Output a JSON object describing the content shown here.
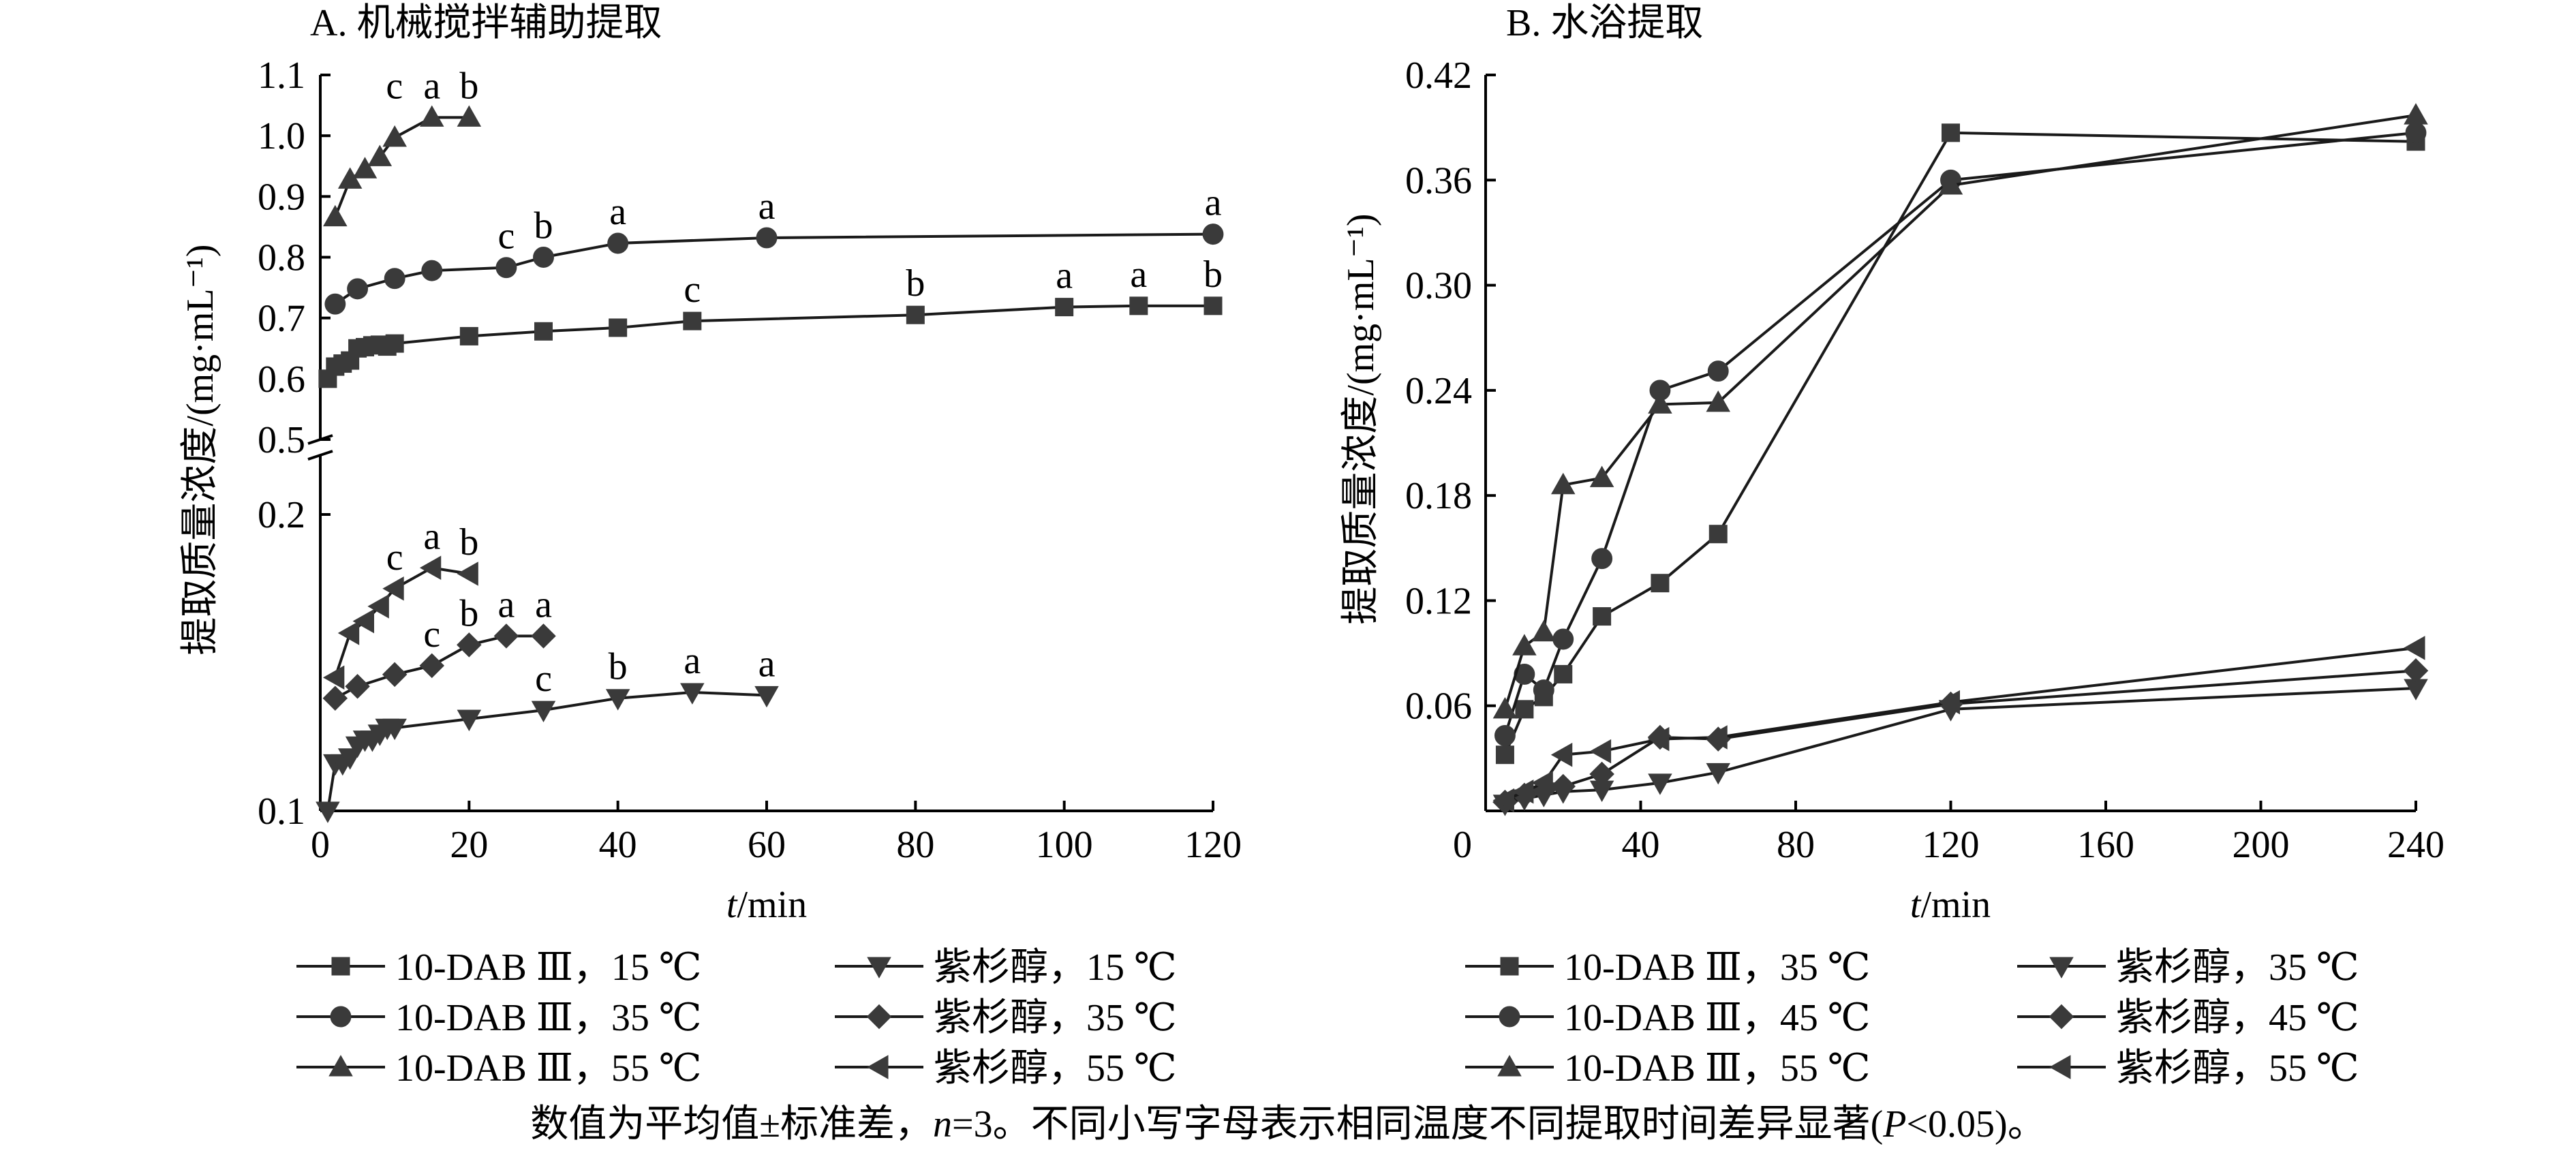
{
  "chart_data": [
    {
      "type": "line",
      "title": "A. 机械搅拌辅助提取",
      "xlabel_italic": "t",
      "xlabel_rest": "/min",
      "ylabel": "提取质量浓度/(mg·mL⁻¹)",
      "xlim": [
        0,
        120
      ],
      "xticks": [
        "0",
        "20",
        "40",
        "60",
        "80",
        "100",
        "120"
      ],
      "ylim_upper": [
        0.5,
        1.1
      ],
      "yticks_upper": [
        "0.5",
        "0.6",
        "0.7",
        "0.8",
        "0.9",
        "1.0",
        "1.1"
      ],
      "ylim_lower": [
        0.1,
        0.2
      ],
      "yticks_lower": [
        "0.1",
        "0.2"
      ],
      "grid": false,
      "series": [
        {
          "name": "10-DAB Ⅲ，15 ℃",
          "marker": "square",
          "panel": "upper",
          "x": [
            1,
            2,
            3,
            4,
            5,
            6,
            7,
            8,
            9,
            10,
            20,
            30,
            40,
            50,
            80,
            100,
            110,
            120
          ],
          "y": [
            0.6,
            0.62,
            0.625,
            0.63,
            0.65,
            0.652,
            0.655,
            0.656,
            0.653,
            0.658,
            0.67,
            0.678,
            0.684,
            0.695,
            0.705,
            0.718,
            0.72,
            0.72
          ]
        },
        {
          "name": "10-DAB Ⅲ，35 ℃",
          "marker": "circle",
          "panel": "upper",
          "x": [
            2,
            5,
            10,
            15,
            25,
            30,
            40,
            60,
            120
          ],
          "y": [
            0.723,
            0.748,
            0.765,
            0.778,
            0.783,
            0.8,
            0.823,
            0.832,
            0.838
          ]
        },
        {
          "name": "10-DAB Ⅲ，55 ℃",
          "marker": "triangle-up",
          "panel": "upper",
          "x": [
            2,
            4,
            6,
            8,
            10,
            15,
            20
          ],
          "y": [
            0.866,
            0.928,
            0.945,
            0.965,
            0.997,
            1.03,
            1.03
          ]
        },
        {
          "name": "紫杉醇，15 ℃",
          "marker": "triangle-down",
          "panel": "lower",
          "x": [
            1,
            2,
            3,
            4,
            5,
            6,
            7,
            8,
            9,
            10,
            20,
            30,
            40,
            50,
            60
          ],
          "y": [
            0.1,
            0.116,
            0.116,
            0.118,
            0.122,
            0.124,
            0.124,
            0.126,
            0.128,
            0.128,
            0.131,
            0.134,
            0.138,
            0.14,
            0.139
          ]
        },
        {
          "name": "紫杉醇，35 ℃",
          "marker": "diamond",
          "panel": "lower",
          "x": [
            2,
            5,
            10,
            15,
            20,
            25,
            30
          ],
          "y": [
            0.138,
            0.142,
            0.146,
            0.149,
            0.156,
            0.159,
            0.159
          ]
        },
        {
          "name": "紫杉醇，55 ℃",
          "marker": "triangle-left",
          "panel": "lower",
          "x": [
            2,
            4,
            6,
            8,
            10,
            15,
            20
          ],
          "y": [
            0.145,
            0.16,
            0.164,
            0.169,
            0.175,
            0.182,
            0.18
          ]
        }
      ],
      "annotations": [
        {
          "text": "c",
          "x": 15,
          "y": 1.03,
          "panel": "upper"
        },
        {
          "text": "a",
          "x": 15,
          "y": 1.03,
          "panel": "upper"
        },
        {
          "text": "b",
          "x": 20,
          "y": 1.03,
          "panel": "upper"
        },
        {
          "text": "c",
          "x": 25,
          "y": 0.783,
          "panel": "upper"
        },
        {
          "text": "b",
          "x": 30,
          "y": 0.8,
          "panel": "upper"
        },
        {
          "text": "a",
          "x": 40,
          "y": 0.823,
          "panel": "upper"
        },
        {
          "text": "a",
          "x": 60,
          "y": 0.832,
          "panel": "upper"
        },
        {
          "text": "a",
          "x": 120,
          "y": 0.838,
          "panel": "upper"
        },
        {
          "text": "c",
          "x": 50,
          "y": 0.695,
          "panel": "upper"
        },
        {
          "text": "b",
          "x": 80,
          "y": 0.705,
          "panel": "upper"
        },
        {
          "text": "a",
          "x": 100,
          "y": 0.718,
          "panel": "upper"
        },
        {
          "text": "a",
          "x": 110,
          "y": 0.72,
          "panel": "upper"
        },
        {
          "text": "b",
          "x": 120,
          "y": 0.72,
          "panel": "upper"
        },
        {
          "text": "c",
          "x": 10,
          "y": 0.175,
          "panel": "lower"
        },
        {
          "text": "a",
          "x": 15,
          "y": 0.182,
          "panel": "lower"
        },
        {
          "text": "b",
          "x": 20,
          "y": 0.18,
          "panel": "lower"
        },
        {
          "text": "c",
          "x": 15,
          "y": 0.149,
          "panel": "lower"
        },
        {
          "text": "b",
          "x": 20,
          "y": 0.156,
          "panel": "lower"
        },
        {
          "text": "a",
          "x": 25,
          "y": 0.159,
          "panel": "lower"
        },
        {
          "text": "a",
          "x": 30,
          "y": 0.159,
          "panel": "lower"
        },
        {
          "text": "c",
          "x": 30,
          "y": 0.134,
          "panel": "lower"
        },
        {
          "text": "b",
          "x": 40,
          "y": 0.138,
          "panel": "lower"
        },
        {
          "text": "a",
          "x": 50,
          "y": 0.14,
          "panel": "lower"
        },
        {
          "text": "a",
          "x": 60,
          "y": 0.139,
          "panel": "lower"
        }
      ]
    },
    {
      "type": "line",
      "title": "B. 水浴提取",
      "xlabel_italic": "t",
      "xlabel_rest": "/min",
      "ylabel": "提取质量浓度/(mg·mL⁻¹)",
      "xlim": [
        0,
        240
      ],
      "xticks": [
        "0",
        "40",
        "80",
        "120",
        "160",
        "200",
        "240"
      ],
      "ylim": [
        0,
        0.42
      ],
      "yticks": [
        "0.06",
        "0.12",
        "0.18",
        "0.24",
        "0.30",
        "0.36",
        "0.42"
      ],
      "yzero_label": "0",
      "grid": false,
      "series": [
        {
          "name": "10-DAB Ⅲ，35 ℃",
          "marker": "square",
          "x": [
            5,
            10,
            15,
            20,
            30,
            45,
            60,
            120,
            240
          ],
          "y": [
            0.032,
            0.058,
            0.065,
            0.078,
            0.111,
            0.13,
            0.158,
            0.387,
            0.382
          ]
        },
        {
          "name": "10-DAB Ⅲ，45 ℃",
          "marker": "circle",
          "x": [
            5,
            10,
            15,
            20,
            30,
            45,
            60,
            120,
            240
          ],
          "y": [
            0.043,
            0.078,
            0.069,
            0.098,
            0.144,
            0.24,
            0.251,
            0.36,
            0.387
          ]
        },
        {
          "name": "10-DAB Ⅲ，55 ℃",
          "marker": "triangle-up",
          "x": [
            5,
            10,
            15,
            20,
            30,
            45,
            60,
            120,
            240
          ],
          "y": [
            0.058,
            0.094,
            0.102,
            0.186,
            0.19,
            0.232,
            0.233,
            0.357,
            0.397
          ]
        },
        {
          "name": "紫杉醇，35 ℃",
          "marker": "triangle-down",
          "x": [
            5,
            10,
            15,
            20,
            30,
            45,
            60,
            120,
            240
          ],
          "y": [
            0.004,
            0.007,
            0.009,
            0.011,
            0.012,
            0.016,
            0.022,
            0.058,
            0.07
          ]
        },
        {
          "name": "紫杉醇，45 ℃",
          "marker": "diamond",
          "x": [
            5,
            10,
            15,
            20,
            30,
            45,
            60,
            120,
            240
          ],
          "y": [
            0.005,
            0.009,
            0.012,
            0.014,
            0.021,
            0.042,
            0.041,
            0.061,
            0.08
          ]
        },
        {
          "name": "紫杉醇，55 ℃",
          "marker": "triangle-left",
          "x": [
            5,
            10,
            15,
            20,
            30,
            45,
            60,
            120,
            240
          ],
          "y": [
            0.006,
            0.011,
            0.016,
            0.032,
            0.034,
            0.041,
            0.042,
            0.062,
            0.093
          ]
        }
      ]
    }
  ],
  "footnote": {
    "part1": "数值为平均值±标准差，",
    "n_italic": "n",
    "part2": "=3。不同小写字母表示相同温度不同提取时间差异显著(",
    "p_italic": "P",
    "part3": "<0.05)。"
  }
}
